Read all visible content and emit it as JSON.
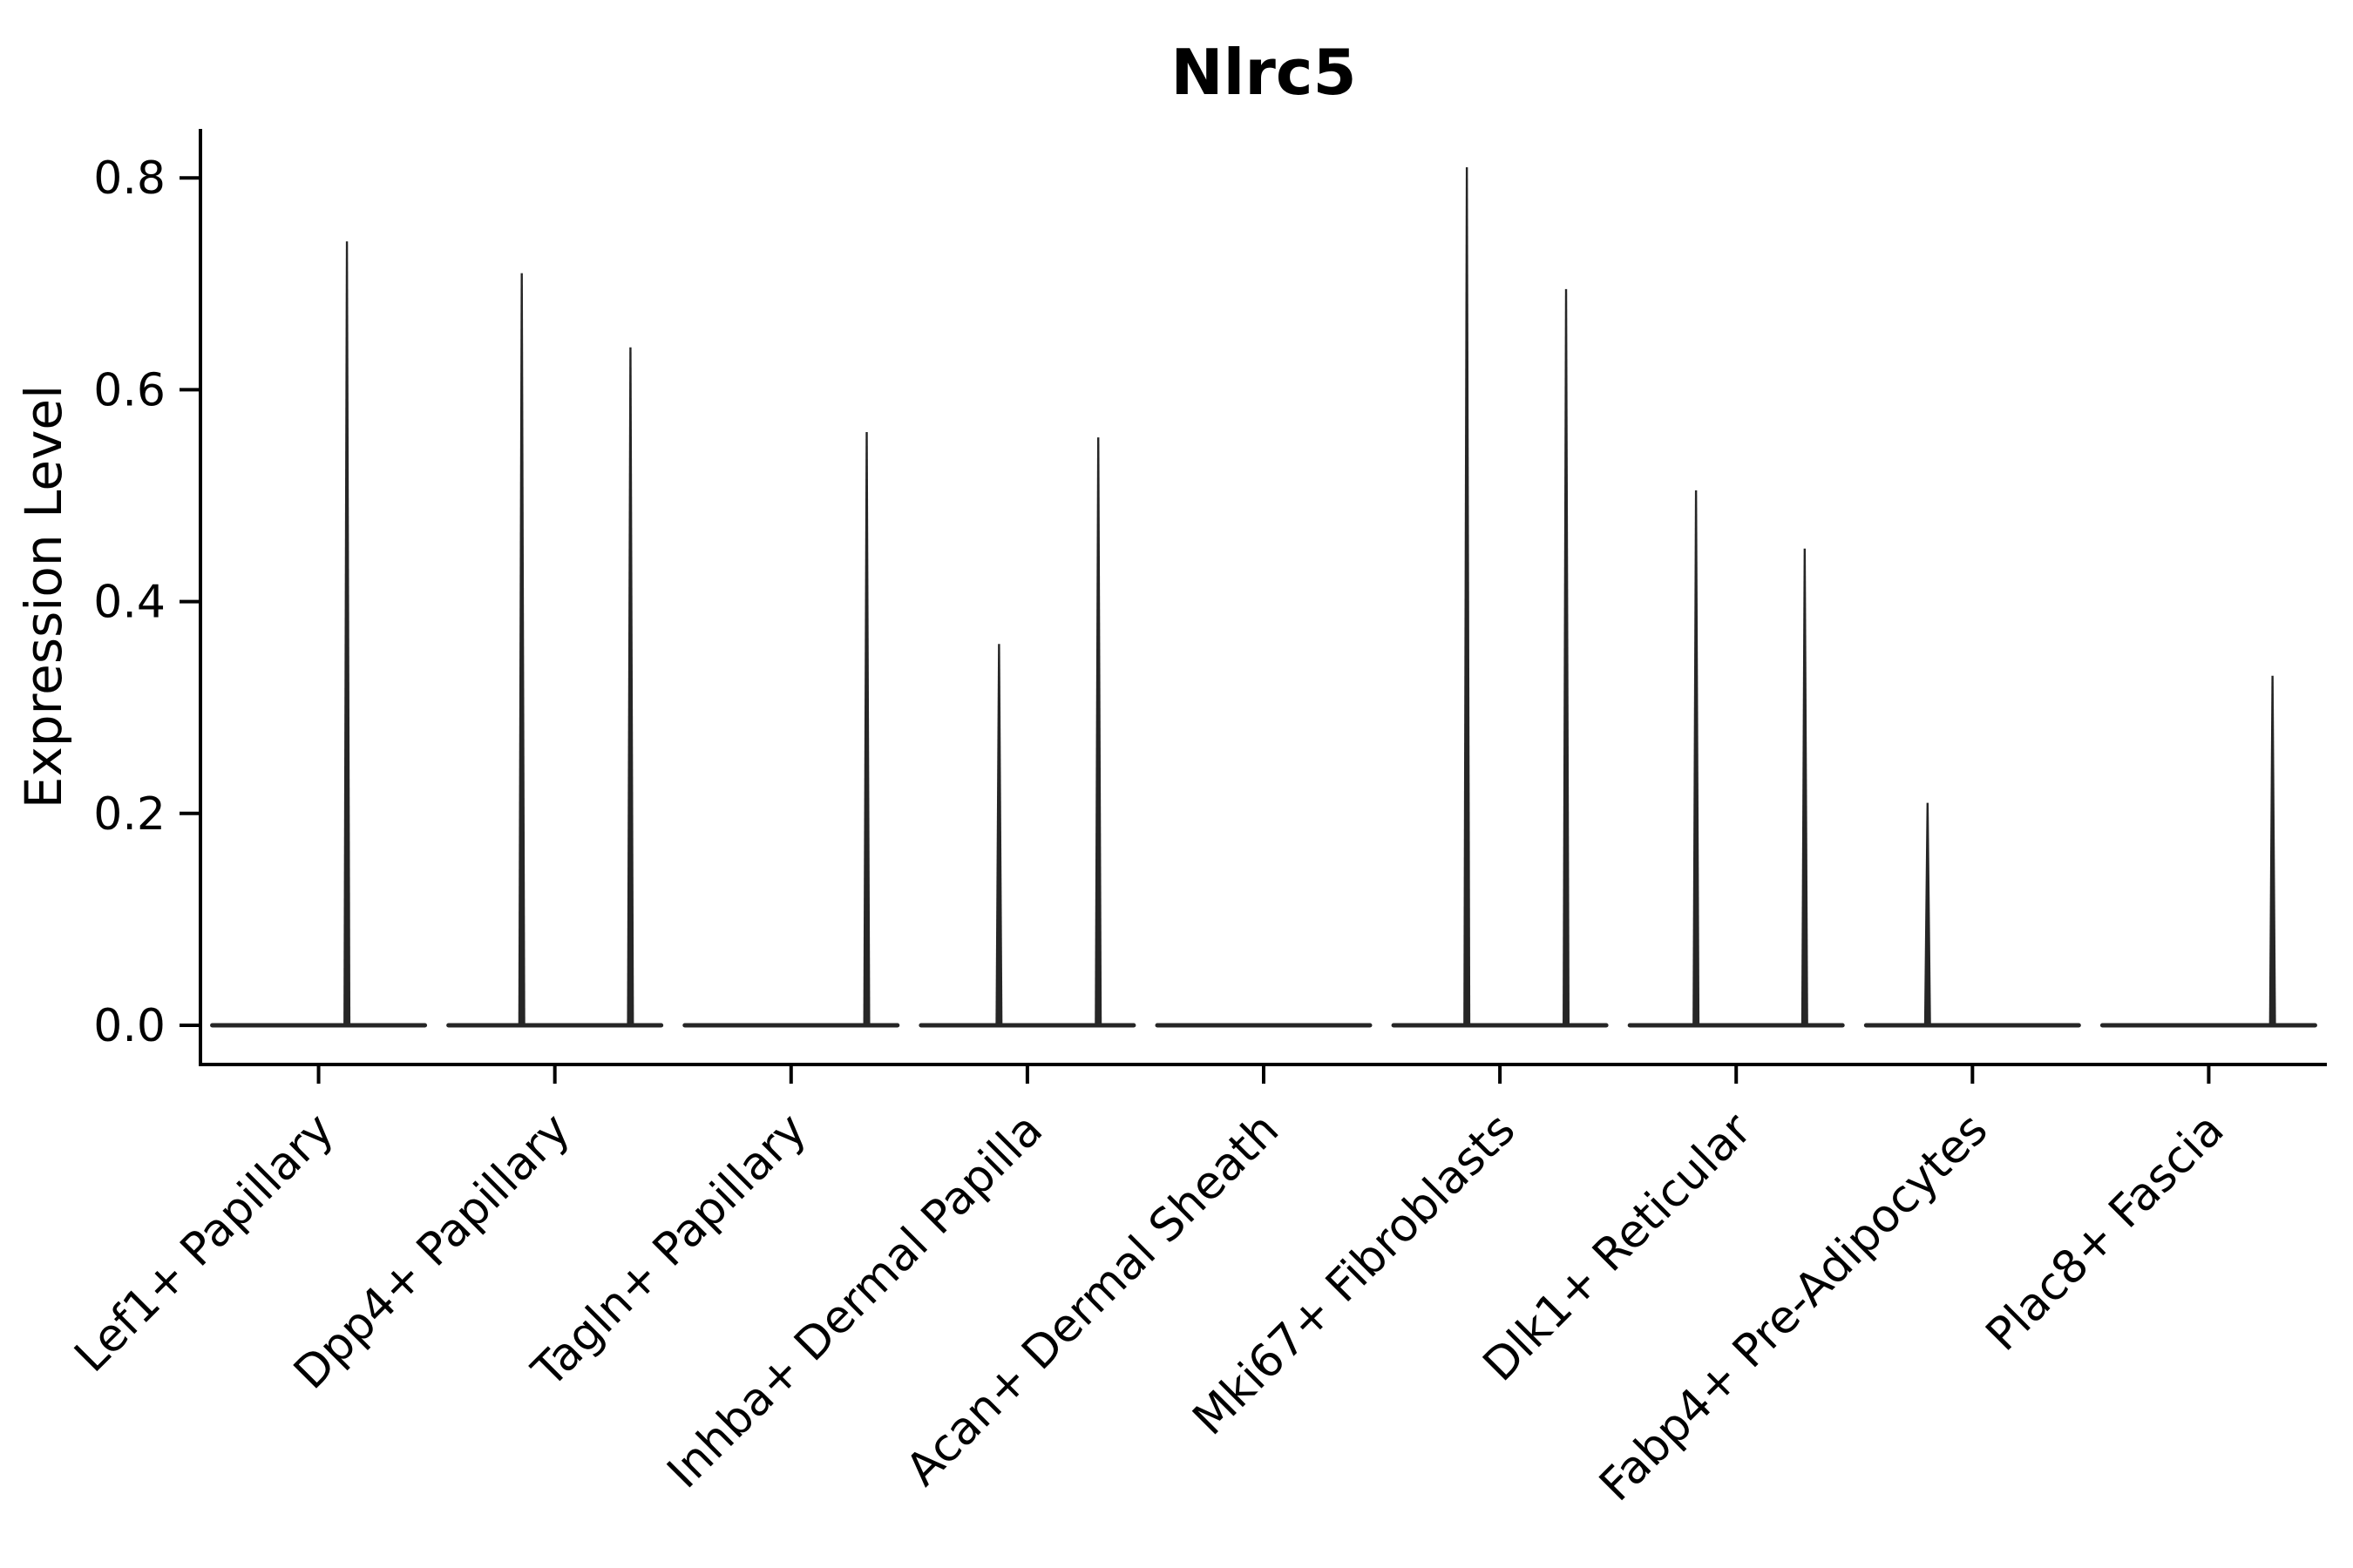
{
  "page": {
    "background": "#ffffff"
  },
  "chart_data": {
    "type": "violin",
    "title": "Nlrc5",
    "ylabel": "Expression Level",
    "xlabel": "",
    "grid": false,
    "legend": "none",
    "ylim": [
      -0.037,
      0.846
    ],
    "yticks": [
      "0.0",
      "0.2",
      "0.4",
      "0.6",
      "0.8"
    ],
    "ytick_values": [
      0.0,
      0.2,
      0.4,
      0.6,
      0.8
    ],
    "categories": [
      "Lef1+ Papillary",
      "Dpp4+ Papillary",
      "Tagln+ Papillary",
      "Inhba+ Dermal Papilla",
      "Acan+ Dermal Sheath",
      "Mki67+ Fibroblasts",
      "Dlk1+ Reticular",
      "Fabp4+ Pre-Adipocytes",
      "Plac8+ Fascia"
    ],
    "violins": [
      {
        "category": "Lef1+ Papillary",
        "zero_body": true,
        "spikes": [
          {
            "offset": 0.12,
            "max": 0.74
          }
        ]
      },
      {
        "category": "Dpp4+ Papillary",
        "zero_body": true,
        "spikes": [
          {
            "offset": -0.14,
            "max": 0.71
          },
          {
            "offset": 0.32,
            "max": 0.64
          }
        ]
      },
      {
        "category": "Tagln+ Papillary",
        "zero_body": true,
        "spikes": [
          {
            "offset": 0.32,
            "max": 0.56
          }
        ]
      },
      {
        "category": "Inhba+ Dermal Papilla",
        "zero_body": true,
        "spikes": [
          {
            "offset": -0.12,
            "max": 0.36
          },
          {
            "offset": 0.3,
            "max": 0.555
          }
        ]
      },
      {
        "category": "Acan+ Dermal Sheath",
        "zero_body": true,
        "spikes": []
      },
      {
        "category": "Mki67+ Fibroblasts",
        "zero_body": true,
        "spikes": [
          {
            "offset": -0.14,
            "max": 0.81
          },
          {
            "offset": 0.28,
            "max": 0.695
          }
        ]
      },
      {
        "category": "Dlk1+ Reticular",
        "zero_body": true,
        "spikes": [
          {
            "offset": -0.17,
            "max": 0.505
          },
          {
            "offset": 0.29,
            "max": 0.45
          }
        ]
      },
      {
        "category": "Fabp4+ Pre-Adipocytes",
        "zero_body": true,
        "spikes": [
          {
            "offset": -0.19,
            "max": 0.21
          }
        ]
      },
      {
        "category": "Plac8+ Fascia",
        "zero_body": true,
        "spikes": [
          {
            "offset": 0.27,
            "max": 0.33
          }
        ]
      }
    ],
    "colors": {
      "violin": "#262626",
      "axis": "#000000",
      "text": "#000000",
      "background": "#ffffff"
    }
  }
}
